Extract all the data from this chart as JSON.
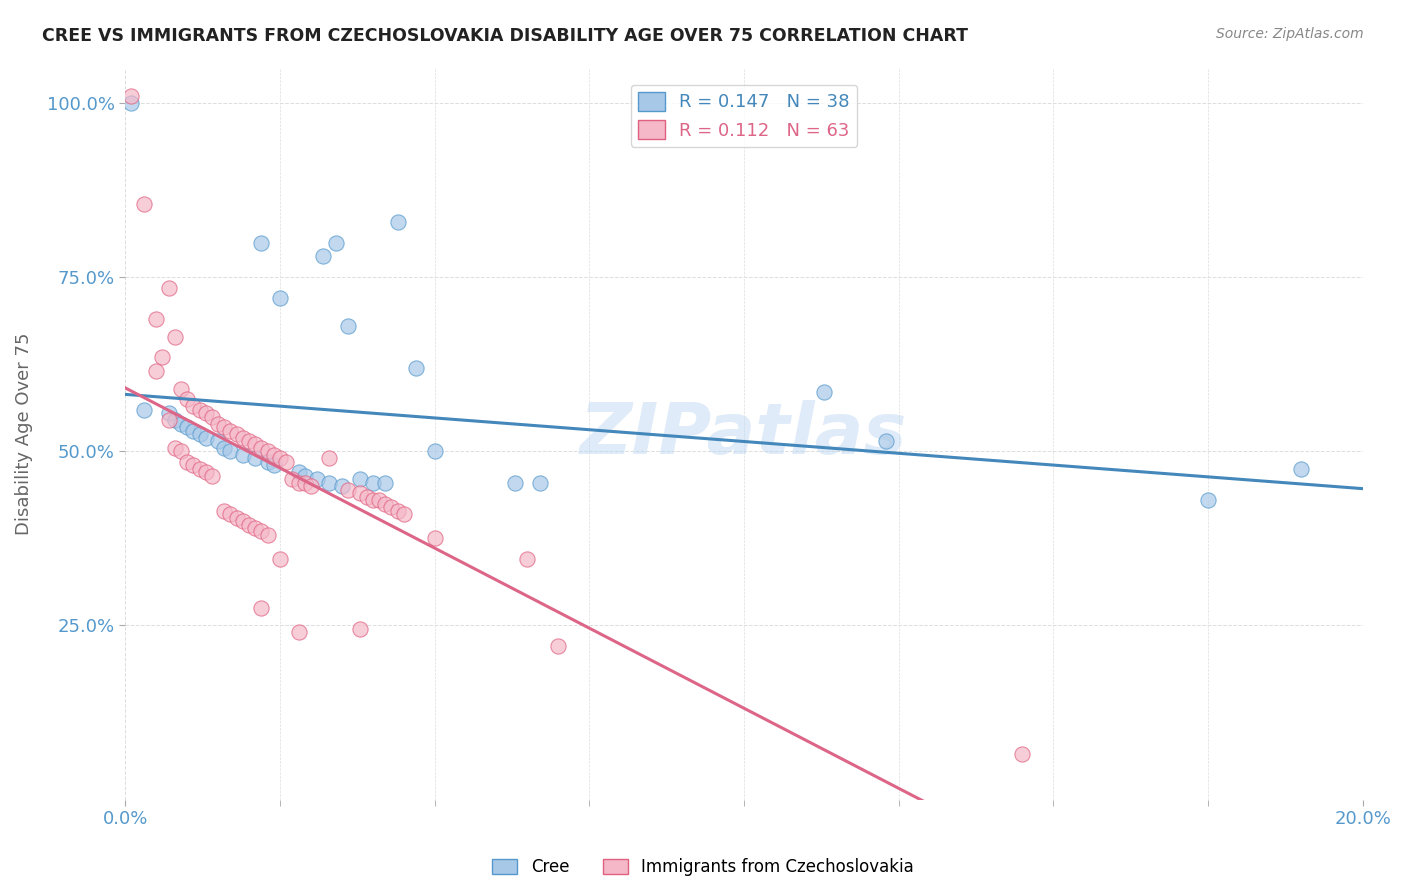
{
  "title": "CREE VS IMMIGRANTS FROM CZECHOSLOVAKIA DISABILITY AGE OVER 75 CORRELATION CHART",
  "source": "Source: ZipAtlas.com",
  "ylabel_label": "Disability Age Over 75",
  "xlim": [
    0.0,
    0.2
  ],
  "ylim": [
    0.0,
    1.05
  ],
  "xtick_positions": [
    0.0,
    0.2
  ],
  "xtick_labels": [
    "0.0%",
    "20.0%"
  ],
  "ytick_values": [
    0.25,
    0.5,
    0.75,
    1.0
  ],
  "ytick_labels": [
    "25.0%",
    "50.0%",
    "75.0%",
    "100.0%"
  ],
  "legend_entries": [
    {
      "label": "R = 0.147   N = 38",
      "color": "#a8c8e8"
    },
    {
      "label": "R = 0.112   N = 63",
      "color": "#f4b8c8"
    }
  ],
  "watermark": "ZIPatlas",
  "cree_color": "#a8c8e8",
  "czech_color": "#f4b8c8",
  "cree_edge_color": "#5599cc",
  "czech_edge_color": "#e06080",
  "cree_line_color": "#4488bb",
  "czech_line_color": "#dd6688",
  "cree_scatter": [
    [
      0.001,
      1.0
    ],
    [
      0.022,
      0.8
    ],
    [
      0.034,
      0.8
    ],
    [
      0.032,
      0.78
    ],
    [
      0.044,
      0.83
    ],
    [
      0.025,
      0.72
    ],
    [
      0.036,
      0.68
    ],
    [
      0.047,
      0.62
    ],
    [
      0.003,
      0.56
    ],
    [
      0.007,
      0.555
    ],
    [
      0.008,
      0.545
    ],
    [
      0.009,
      0.54
    ],
    [
      0.01,
      0.535
    ],
    [
      0.011,
      0.53
    ],
    [
      0.012,
      0.525
    ],
    [
      0.013,
      0.52
    ],
    [
      0.015,
      0.515
    ],
    [
      0.016,
      0.505
    ],
    [
      0.017,
      0.5
    ],
    [
      0.019,
      0.495
    ],
    [
      0.021,
      0.49
    ],
    [
      0.023,
      0.485
    ],
    [
      0.024,
      0.48
    ],
    [
      0.028,
      0.47
    ],
    [
      0.029,
      0.465
    ],
    [
      0.031,
      0.46
    ],
    [
      0.033,
      0.455
    ],
    [
      0.035,
      0.45
    ],
    [
      0.038,
      0.46
    ],
    [
      0.04,
      0.455
    ],
    [
      0.042,
      0.455
    ],
    [
      0.05,
      0.5
    ],
    [
      0.063,
      0.455
    ],
    [
      0.067,
      0.455
    ],
    [
      0.113,
      0.585
    ],
    [
      0.123,
      0.515
    ],
    [
      0.175,
      0.43
    ],
    [
      0.19,
      0.475
    ]
  ],
  "czech_scatter": [
    [
      0.001,
      1.01
    ],
    [
      0.003,
      0.855
    ],
    [
      0.005,
      0.69
    ],
    [
      0.006,
      0.635
    ],
    [
      0.007,
      0.735
    ],
    [
      0.008,
      0.665
    ],
    [
      0.005,
      0.615
    ],
    [
      0.009,
      0.59
    ],
    [
      0.01,
      0.575
    ],
    [
      0.011,
      0.565
    ],
    [
      0.012,
      0.56
    ],
    [
      0.013,
      0.555
    ],
    [
      0.014,
      0.55
    ],
    [
      0.007,
      0.545
    ],
    [
      0.015,
      0.54
    ],
    [
      0.016,
      0.535
    ],
    [
      0.017,
      0.53
    ],
    [
      0.018,
      0.525
    ],
    [
      0.019,
      0.52
    ],
    [
      0.02,
      0.515
    ],
    [
      0.021,
      0.51
    ],
    [
      0.008,
      0.505
    ],
    [
      0.022,
      0.505
    ],
    [
      0.009,
      0.5
    ],
    [
      0.023,
      0.5
    ],
    [
      0.024,
      0.495
    ],
    [
      0.025,
      0.49
    ],
    [
      0.01,
      0.485
    ],
    [
      0.026,
      0.485
    ],
    [
      0.011,
      0.48
    ],
    [
      0.012,
      0.475
    ],
    [
      0.013,
      0.47
    ],
    [
      0.014,
      0.465
    ],
    [
      0.027,
      0.46
    ],
    [
      0.028,
      0.455
    ],
    [
      0.029,
      0.455
    ],
    [
      0.03,
      0.45
    ],
    [
      0.033,
      0.49
    ],
    [
      0.036,
      0.445
    ],
    [
      0.038,
      0.44
    ],
    [
      0.039,
      0.435
    ],
    [
      0.04,
      0.43
    ],
    [
      0.041,
      0.43
    ],
    [
      0.042,
      0.425
    ],
    [
      0.043,
      0.42
    ],
    [
      0.044,
      0.415
    ],
    [
      0.045,
      0.41
    ],
    [
      0.016,
      0.415
    ],
    [
      0.017,
      0.41
    ],
    [
      0.018,
      0.405
    ],
    [
      0.019,
      0.4
    ],
    [
      0.02,
      0.395
    ],
    [
      0.021,
      0.39
    ],
    [
      0.022,
      0.385
    ],
    [
      0.023,
      0.38
    ],
    [
      0.05,
      0.375
    ],
    [
      0.025,
      0.345
    ],
    [
      0.065,
      0.345
    ],
    [
      0.022,
      0.275
    ],
    [
      0.028,
      0.24
    ],
    [
      0.038,
      0.245
    ],
    [
      0.07,
      0.22
    ],
    [
      0.145,
      0.065
    ]
  ],
  "background_color": "#ffffff",
  "grid_color": "#dddddd",
  "tick_color": "#5599cc",
  "ylabel_color": "#666666",
  "title_color": "#222222",
  "source_color": "#888888"
}
